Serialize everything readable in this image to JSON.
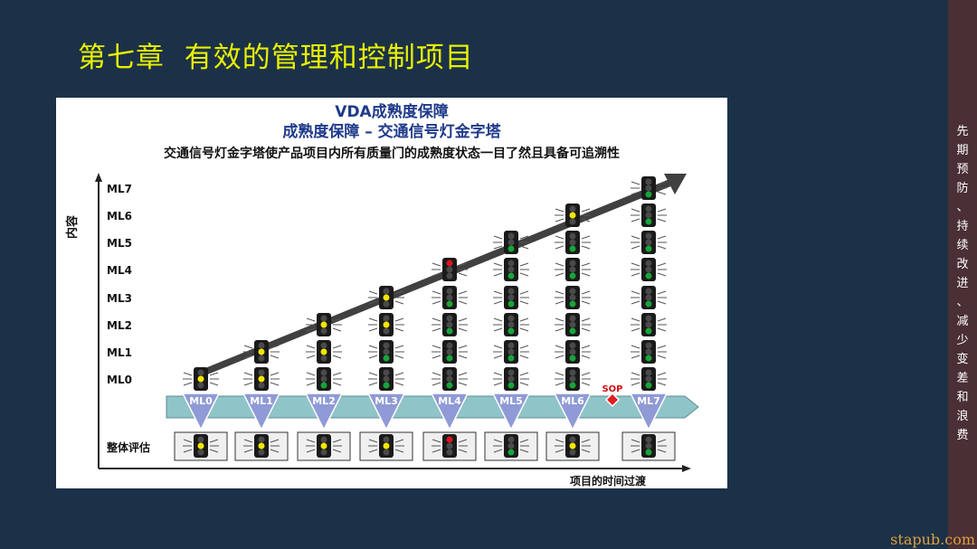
{
  "slide": {
    "title": "第七章  有效的管理和控制项目",
    "sidebar_chars": [
      "先",
      "期",
      "预",
      "防",
      "、",
      "持",
      "续",
      "改",
      "进",
      "、",
      "减",
      "少",
      "变",
      "差",
      "和",
      "浪",
      "费"
    ],
    "watermark": "stapub.com"
  },
  "figure": {
    "title_line1": "VDA成熟度保障",
    "title_line2": "成熟度保障 – 交通信号灯金字塔",
    "subtitle": "交通信号灯金字塔使产品项目内所有质量门的成熟度状态一目了然且具备可追溯性",
    "y_axis_label": "内容",
    "x_axis_label": "项目的时间过渡",
    "overall_label": "整体评估",
    "sop_label": "SOP",
    "levels": [
      "ML0",
      "ML1",
      "ML2",
      "ML3",
      "ML4",
      "ML5",
      "ML6",
      "ML7"
    ],
    "milestones": [
      "ML0",
      "ML1",
      "ML2",
      "ML3",
      "ML4",
      "ML5",
      "ML6",
      "ML7"
    ],
    "colors": {
      "red": "#e0141b",
      "yellow": "#f2e600",
      "green": "#16a637",
      "arrow": "#404040",
      "band": "#8fc4c8",
      "triangle": "#8f9ad6"
    },
    "columns": [
      {
        "lights": [
          "yellow"
        ],
        "overall": "yellow"
      },
      {
        "lights": [
          "yellow",
          "yellow"
        ],
        "overall": "yellow"
      },
      {
        "lights": [
          "green",
          "yellow",
          "yellow"
        ],
        "overall": "yellow"
      },
      {
        "lights": [
          "green",
          "green",
          "yellow",
          "yellow"
        ],
        "overall": "yellow"
      },
      {
        "lights": [
          "green",
          "green",
          "green",
          "green",
          "red"
        ],
        "overall": "red"
      },
      {
        "lights": [
          "green",
          "green",
          "green",
          "green",
          "green",
          "green"
        ],
        "overall": "green"
      },
      {
        "lights": [
          "green",
          "green",
          "green",
          "green",
          "green",
          "green",
          "yellow"
        ],
        "overall": "yellow"
      },
      {
        "lights": [
          "green",
          "green",
          "green",
          "green",
          "green",
          "green",
          "green",
          "green"
        ],
        "overall": "green"
      }
    ]
  }
}
